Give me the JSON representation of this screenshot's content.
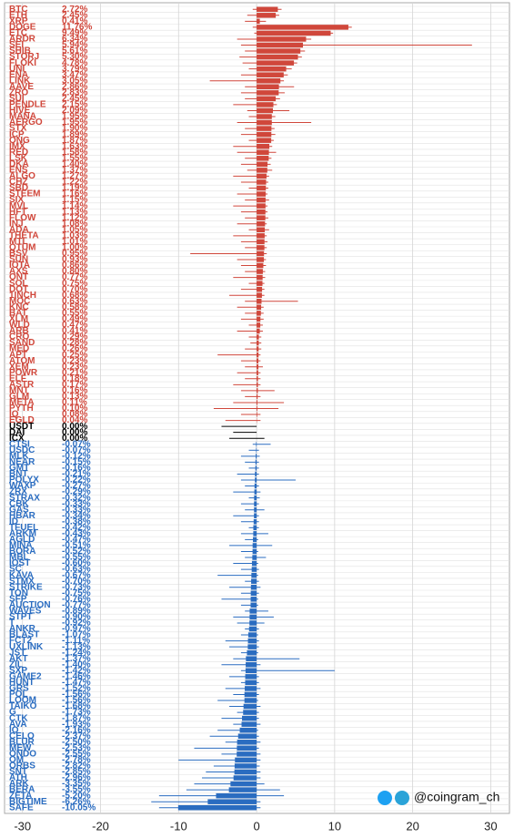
{
  "chart_data": {
    "type": "diverging-bar",
    "watermark": "@coingram_ch",
    "xlim": [
      -32.3,
      32.4
    ],
    "xticks": [
      -30,
      -20,
      -10,
      0,
      10,
      20,
      30
    ],
    "grid": true,
    "colors": {
      "up": "#d0473b",
      "flat": "#000000",
      "down": "#2a6cc0"
    },
    "categories": [
      "BTC",
      "ETH",
      "XRP",
      "DOGE",
      "ETC",
      "ARDR",
      "SEI",
      "SHIB",
      "STORJ",
      "FLOKI",
      "UNI",
      "ENA",
      "LINK",
      "AAVE",
      "ZRO",
      "SUI",
      "PENDLE",
      "HIVE",
      "MANA",
      "AERGO",
      "STX",
      "ICP",
      "ONG",
      "IMX",
      "RED",
      "LSK",
      "DKA",
      "ENS",
      "ALGO",
      "CHZ",
      "SBD",
      "STEEM",
      "SIX",
      "MVL",
      "HFT",
      "FLOW",
      "INJ",
      "ADA",
      "THETA",
      "MTL",
      "QTUM",
      "BSV",
      "SUN",
      "IOTA",
      "AXS",
      "ONT",
      "SOL",
      "DOT",
      "1INCH",
      "MOC",
      "KNC",
      "BAT",
      "XLM",
      "WLD",
      "ARB",
      "CRO",
      "SAND",
      "MED",
      "APT",
      "ATOM",
      "XEM",
      "POWR",
      "ELF",
      "ASTR",
      "MNT",
      "GLM",
      "META",
      "PYTH",
      "IQ",
      "EGLD",
      "USDT",
      "DAI",
      "ICX",
      "CTSI",
      "USDC",
      "MLK",
      "NEAR",
      "GMT",
      "BNT",
      "POLYX",
      "WAXP",
      "ZRX",
      "STRAX",
      "CBK",
      "GAS",
      "HBAR",
      "ID",
      "TFUEL",
      "ARKM",
      "AGLD",
      "MINA",
      "BORA",
      "MBL",
      "IOST",
      "SC",
      "KAVA",
      "STMX",
      "STRIKE",
      "TON",
      "SFP",
      "AUCTION",
      "WAVES",
      "STPT",
      "T",
      "ANKR",
      "BLAST",
      "FCT2",
      "UXLINK",
      "JST",
      "AKT",
      "ZIL",
      "SXP",
      "GAME2",
      "HUNT",
      "GRS",
      "POL",
      "LOOM",
      "TAIKO",
      "G",
      "CTK",
      "AVA",
      "IO",
      "CELO",
      "BLUR",
      "MEW",
      "ONDO",
      "OM",
      "ORBS",
      "SNT",
      "ATH",
      "ARK",
      "BERA",
      "ZETA",
      "BIGTIME",
      "SAFE"
    ],
    "values": [
      2.72,
      2.45,
      0.41,
      11.76,
      9.49,
      6.34,
      5.94,
      5.61,
      5.3,
      4.78,
      3.79,
      3.47,
      3.05,
      2.86,
      2.83,
      2.45,
      2.15,
      2.09,
      1.95,
      1.95,
      1.9,
      1.89,
      1.87,
      1.63,
      1.58,
      1.55,
      1.4,
      1.37,
      1.27,
      1.22,
      1.19,
      1.16,
      1.15,
      1.14,
      1.13,
      1.12,
      1.08,
      1.05,
      1.03,
      1.01,
      1.0,
      0.95,
      0.93,
      0.86,
      0.8,
      0.77,
      0.75,
      0.7,
      0.68,
      0.63,
      0.58,
      0.55,
      0.49,
      0.47,
      0.41,
      0.29,
      0.28,
      0.26,
      0.25,
      0.23,
      0.23,
      0.21,
      0.18,
      0.17,
      0.16,
      0.13,
      0.11,
      0.1,
      0.08,
      0.04,
      0.0,
      0.0,
      0.0,
      -0.07,
      -0.07,
      -0.12,
      -0.15,
      -0.16,
      -0.21,
      -0.22,
      -0.27,
      -0.29,
      -0.32,
      -0.33,
      -0.33,
      -0.34,
      -0.38,
      -0.42,
      -0.43,
      -0.47,
      -0.51,
      -0.52,
      -0.55,
      -0.6,
      -0.63,
      -0.67,
      -0.7,
      -0.73,
      -0.75,
      -0.76,
      -0.77,
      -0.89,
      -0.9,
      -0.92,
      -0.97,
      -1.07,
      -1.11,
      -1.13,
      -1.24,
      -1.37,
      -1.4,
      -1.42,
      -1.46,
      -1.47,
      -1.52,
      -1.56,
      -1.56,
      -1.68,
      -1.73,
      -1.87,
      -1.93,
      -2.16,
      -2.37,
      -2.5,
      -2.53,
      -2.55,
      -2.78,
      -2.82,
      -2.85,
      -2.96,
      -3.35,
      -3.55,
      -5.2,
      -6.26,
      -10.05
    ],
    "value_labels": [
      "2.72%",
      "2.45%",
      "0.41%",
      "11.76%",
      "9.49%",
      "6.34%",
      "5.94%",
      "5.61%",
      "5.30%",
      "4.78%",
      "3.79%",
      "3.47%",
      "3.05%",
      "2.86%",
      "2.83%",
      "2.45%",
      "2.15%",
      "2.09%",
      "1.95%",
      "1.95%",
      "1.90%",
      "1.89%",
      "1.87%",
      "1.63%",
      "1.58%",
      "1.55%",
      "1.40%",
      "1.37%",
      "1.27%",
      "1.22%",
      "1.19%",
      "1.16%",
      "1.15%",
      "1.14%",
      "1.13%",
      "1.12%",
      "1.08%",
      "1.05%",
      "1.03%",
      "1.01%",
      "1.00%",
      "0.95%",
      "0.93%",
      "0.86%",
      "0.80%",
      "0.77%",
      "0.75%",
      "0.70%",
      "0.68%",
      "0.63%",
      "0.58%",
      "0.55%",
      "0.49%",
      "0.47%",
      "0.41%",
      "0.29%",
      "0.28%",
      "0.26%",
      "0.25%",
      "0.23%",
      "0.23%",
      "0.21%",
      "0.18%",
      "0.17%",
      "0.16%",
      "0.13%",
      "0.11%",
      "0.10%",
      "0.08%",
      "0.04%",
      "0.00%",
      "0.00%",
      "0.00%",
      "-0.07%",
      "-0.07%",
      "-0.12%",
      "-0.15%",
      "-0.16%",
      "-0.21%",
      "-0.22%",
      "-0.27%",
      "-0.29%",
      "-0.32%",
      "-0.33%",
      "-0.33%",
      "-0.34%",
      "-0.38%",
      "-0.42%",
      "-0.43%",
      "-0.47%",
      "-0.51%",
      "-0.52%",
      "-0.55%",
      "-0.60%",
      "-0.63%",
      "-0.67%",
      "-0.70%",
      "-0.73%",
      "-0.75%",
      "-0.76%",
      "-0.77%",
      "-0.89%",
      "-0.90%",
      "-0.92%",
      "-0.97%",
      "-1.07%",
      "-1.11%",
      "-1.13%",
      "-1.24%",
      "-1.37%",
      "-1.40%",
      "-1.42%",
      "-1.46%",
      "-1.47%",
      "-1.52%",
      "-1.56%",
      "-1.56%",
      "-1.68%",
      "-1.73%",
      "-1.87%",
      "-1.93%",
      "-2.16%",
      "-2.37%",
      "-2.50%",
      "-2.53%",
      "-2.55%",
      "-2.78%",
      "-2.82%",
      "-2.85%",
      "-2.96%",
      "-3.35%",
      "-3.55%",
      "-5.20%",
      "-6.26%",
      "-10.05%"
    ],
    "ranges": [
      [
        -0.5,
        3.2
      ],
      [
        -1.2,
        2.9
      ],
      [
        -1.5,
        1.2
      ],
      [
        -0.5,
        12.2
      ],
      [
        -0.3,
        9.8
      ],
      [
        -2.5,
        7.0
      ],
      [
        -2.0,
        27.6
      ],
      [
        -1.5,
        6.2
      ],
      [
        -2.2,
        5.8
      ],
      [
        -1.8,
        5.2
      ],
      [
        -1.0,
        4.5
      ],
      [
        -2.0,
        4.0
      ],
      [
        -6.0,
        3.5
      ],
      [
        -1.5,
        4.8
      ],
      [
        -2.0,
        3.6
      ],
      [
        -1.5,
        3.0
      ],
      [
        -3.0,
        2.6
      ],
      [
        -1.2,
        4.2
      ],
      [
        -1.0,
        2.4
      ],
      [
        -2.5,
        7.0
      ],
      [
        -1.5,
        2.3
      ],
      [
        -2.0,
        2.4
      ],
      [
        -1.0,
        2.2
      ],
      [
        -3.0,
        2.0
      ],
      [
        -2.5,
        2.5
      ],
      [
        -1.5,
        1.9
      ],
      [
        -2.0,
        1.8
      ],
      [
        -1.2,
        2.0
      ],
      [
        -3.0,
        1.6
      ],
      [
        -2.0,
        1.5
      ],
      [
        -1.0,
        1.5
      ],
      [
        -2.5,
        1.4
      ],
      [
        -1.5,
        1.6
      ],
      [
        -3.0,
        1.4
      ],
      [
        -2.0,
        1.4
      ],
      [
        -1.5,
        1.5
      ],
      [
        -2.5,
        1.3
      ],
      [
        -1.0,
        1.6
      ],
      [
        -3.0,
        1.3
      ],
      [
        -2.0,
        1.4
      ],
      [
        -1.5,
        1.3
      ],
      [
        -8.5,
        1.3
      ],
      [
        -2.5,
        1.2
      ],
      [
        -2.0,
        1.2
      ],
      [
        -1.5,
        1.1
      ],
      [
        -3.0,
        1.1
      ],
      [
        -1.0,
        1.0
      ],
      [
        -2.0,
        1.0
      ],
      [
        -3.5,
        1.0
      ],
      [
        -1.5,
        5.3
      ],
      [
        -2.5,
        0.9
      ],
      [
        -1.5,
        0.9
      ],
      [
        -2.0,
        0.9
      ],
      [
        -1.0,
        0.8
      ],
      [
        -2.5,
        0.8
      ],
      [
        -1.0,
        0.6
      ],
      [
        -0.8,
        0.6
      ],
      [
        -1.5,
        0.6
      ],
      [
        -5.0,
        0.5
      ],
      [
        -2.0,
        0.5
      ],
      [
        -1.5,
        0.8
      ],
      [
        -2.5,
        0.5
      ],
      [
        -1.5,
        0.5
      ],
      [
        -3.0,
        0.5
      ],
      [
        -2.0,
        2.3
      ],
      [
        -1.5,
        0.5
      ],
      [
        -3.0,
        3.5
      ],
      [
        -5.5,
        2.8
      ],
      [
        -2.0,
        0.5
      ],
      [
        -4.0,
        0.5
      ],
      [
        -4.5,
        0.0
      ],
      [
        -3.0,
        0.0
      ],
      [
        -3.5,
        1.0
      ],
      [
        -0.5,
        1.8
      ],
      [
        -1.0,
        0.3
      ],
      [
        -2.0,
        0.4
      ],
      [
        -1.5,
        0.3
      ],
      [
        -1.0,
        0.3
      ],
      [
        -2.5,
        0.3
      ],
      [
        -2.0,
        5.0
      ],
      [
        -1.5,
        0.3
      ],
      [
        -3.0,
        0.5
      ],
      [
        -1.0,
        0.4
      ],
      [
        -2.0,
        0.3
      ],
      [
        -1.5,
        1.0
      ],
      [
        -3.0,
        0.3
      ],
      [
        -2.0,
        0.3
      ],
      [
        -1.0,
        0.3
      ],
      [
        -2.0,
        1.5
      ],
      [
        -1.5,
        0.2
      ],
      [
        -3.5,
        2.0
      ],
      [
        -2.0,
        0.2
      ],
      [
        -1.5,
        1.2
      ],
      [
        -3.0,
        0.2
      ],
      [
        -2.0,
        0.3
      ],
      [
        -5.0,
        0.2
      ],
      [
        -1.5,
        0.3
      ],
      [
        -3.5,
        0.5
      ],
      [
        -2.0,
        0.3
      ],
      [
        -4.5,
        0.2
      ],
      [
        -2.0,
        0.2
      ],
      [
        -1.5,
        1.5
      ],
      [
        -3.0,
        2.2
      ],
      [
        -2.5,
        1.0
      ],
      [
        -1.5,
        0.3
      ],
      [
        -2.0,
        0.2
      ],
      [
        -4.0,
        0.3
      ],
      [
        -3.5,
        0.3
      ],
      [
        -2.0,
        0.2
      ],
      [
        -3.0,
        5.5
      ],
      [
        -4.5,
        0.5
      ],
      [
        -2.0,
        10.0
      ],
      [
        -3.5,
        0.3
      ],
      [
        -2.0,
        0.3
      ],
      [
        -4.0,
        0.5
      ],
      [
        -3.0,
        0.3
      ],
      [
        -5.0,
        0.2
      ],
      [
        -3.5,
        0.5
      ],
      [
        -2.5,
        0.3
      ],
      [
        -4.5,
        0.3
      ],
      [
        -3.0,
        0.5
      ],
      [
        -5.0,
        0.2
      ],
      [
        -6.0,
        0.3
      ],
      [
        -4.0,
        0.5
      ],
      [
        -8.0,
        0.3
      ],
      [
        -4.5,
        0.5
      ],
      [
        -10.0,
        0.5
      ],
      [
        -5.5,
        0.4
      ],
      [
        -6.5,
        0.5
      ],
      [
        -7.0,
        0.5
      ],
      [
        -8.0,
        1.0
      ],
      [
        -9.0,
        3.0
      ],
      [
        -12.5,
        3.5
      ],
      [
        -13.5,
        0.5
      ],
      [
        -12.5,
        0.5
      ]
    ]
  }
}
